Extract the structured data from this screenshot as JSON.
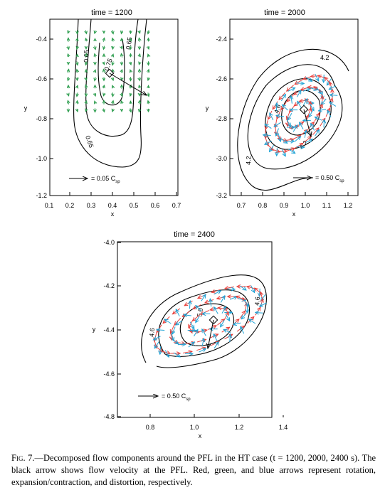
{
  "panels": [
    {
      "title": "time  =  1200",
      "xlabel": "x",
      "ylabel": "y",
      "xticks": [
        "0.1",
        "0.2",
        "0.3",
        "0.4",
        "0.5",
        "0.6",
        "0.7"
      ],
      "yticks": [
        "-0.4",
        "-0.6",
        "-0.8",
        "-1.0",
        "-1.2"
      ],
      "contour_labels": [
        "0.75",
        "0.65",
        "0.65",
        "0.65"
      ],
      "scale_label": "= 0.05 C",
      "scale_sub": "sp"
    },
    {
      "title": "time  =  2000",
      "xlabel": "x",
      "ylabel": "y",
      "xticks": [
        "0.7",
        "0.8",
        "0.9",
        "1.0",
        "1.1",
        "1.2"
      ],
      "yticks": [
        "-2.4",
        "-2.6",
        "-2.8",
        "-3.0",
        "-3.2"
      ],
      "contour_labels": [
        "4.2",
        "4.6",
        "4.2",
        "4.2"
      ],
      "scale_label": "= 0.50 C",
      "scale_sub": "sp"
    },
    {
      "title": "time  =  2400",
      "xlabel": "x",
      "ylabel": "y",
      "xticks": [
        "0.8",
        "1.0",
        "1.2",
        "1.4"
      ],
      "yticks": [
        "-4.0",
        "-4.2",
        "-4.4",
        "-4.6",
        "-4.8"
      ],
      "contour_labels": [
        "4.6",
        "4.6",
        "5.0"
      ],
      "scale_label": "= 0.50 C",
      "scale_sub": "sp"
    }
  ],
  "caption": {
    "fig_label": "Fig. 7.",
    "text": "—Decomposed flow components around the PFL in the HT case (t = 1200, 2000, 2400 s). The black arrow shows flow velocity at the PFL. Red, green, and blue arrows represent rotation, expansion/contraction, and distortion, respectively."
  },
  "colors": {
    "rotation": "#e8413c",
    "expansion": "#2e9e4f",
    "distortion": "#1fa3d6",
    "contour": "#000000"
  }
}
